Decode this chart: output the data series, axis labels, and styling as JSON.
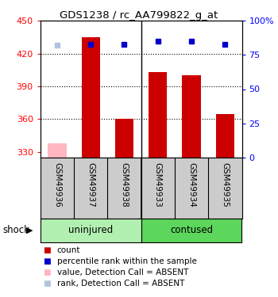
{
  "title": "GDS1238 / rc_AA799822_g_at",
  "categories": [
    "GSM49936",
    "GSM49937",
    "GSM49938",
    "GSM49933",
    "GSM49934",
    "GSM49935"
  ],
  "bar_values": [
    null,
    435,
    360,
    403,
    400,
    365
  ],
  "bar_absent_values": [
    338,
    null,
    null,
    null,
    null,
    null
  ],
  "rank_values": [
    null,
    83,
    83,
    85,
    85,
    83
  ],
  "rank_absent_values": [
    82,
    null,
    null,
    null,
    null,
    null
  ],
  "bar_color": "#CC0000",
  "bar_absent_color": "#FFB6C1",
  "rank_color": "#0000CC",
  "rank_absent_color": "#B0C4DE",
  "ylim_left": [
    325,
    450
  ],
  "ylim_right": [
    0,
    100
  ],
  "yticks_left": [
    330,
    360,
    390,
    420,
    450
  ],
  "yticks_right": [
    0,
    25,
    50,
    75,
    100
  ],
  "ytick_labels_right": [
    "0",
    "25",
    "50",
    "75",
    "100%"
  ],
  "grid_lines": [
    360,
    390,
    420
  ],
  "bar_width": 0.55,
  "group_divider": 2.5,
  "uninjured_color": "#B2F0B2",
  "contused_color": "#5CD65C",
  "sample_bg": "#CCCCCC",
  "legend_items": [
    {
      "label": "count",
      "color": "#CC0000"
    },
    {
      "label": "percentile rank within the sample",
      "color": "#0000CC"
    },
    {
      "label": "value, Detection Call = ABSENT",
      "color": "#FFB6C1"
    },
    {
      "label": "rank, Detection Call = ABSENT",
      "color": "#B0C4DE"
    }
  ]
}
